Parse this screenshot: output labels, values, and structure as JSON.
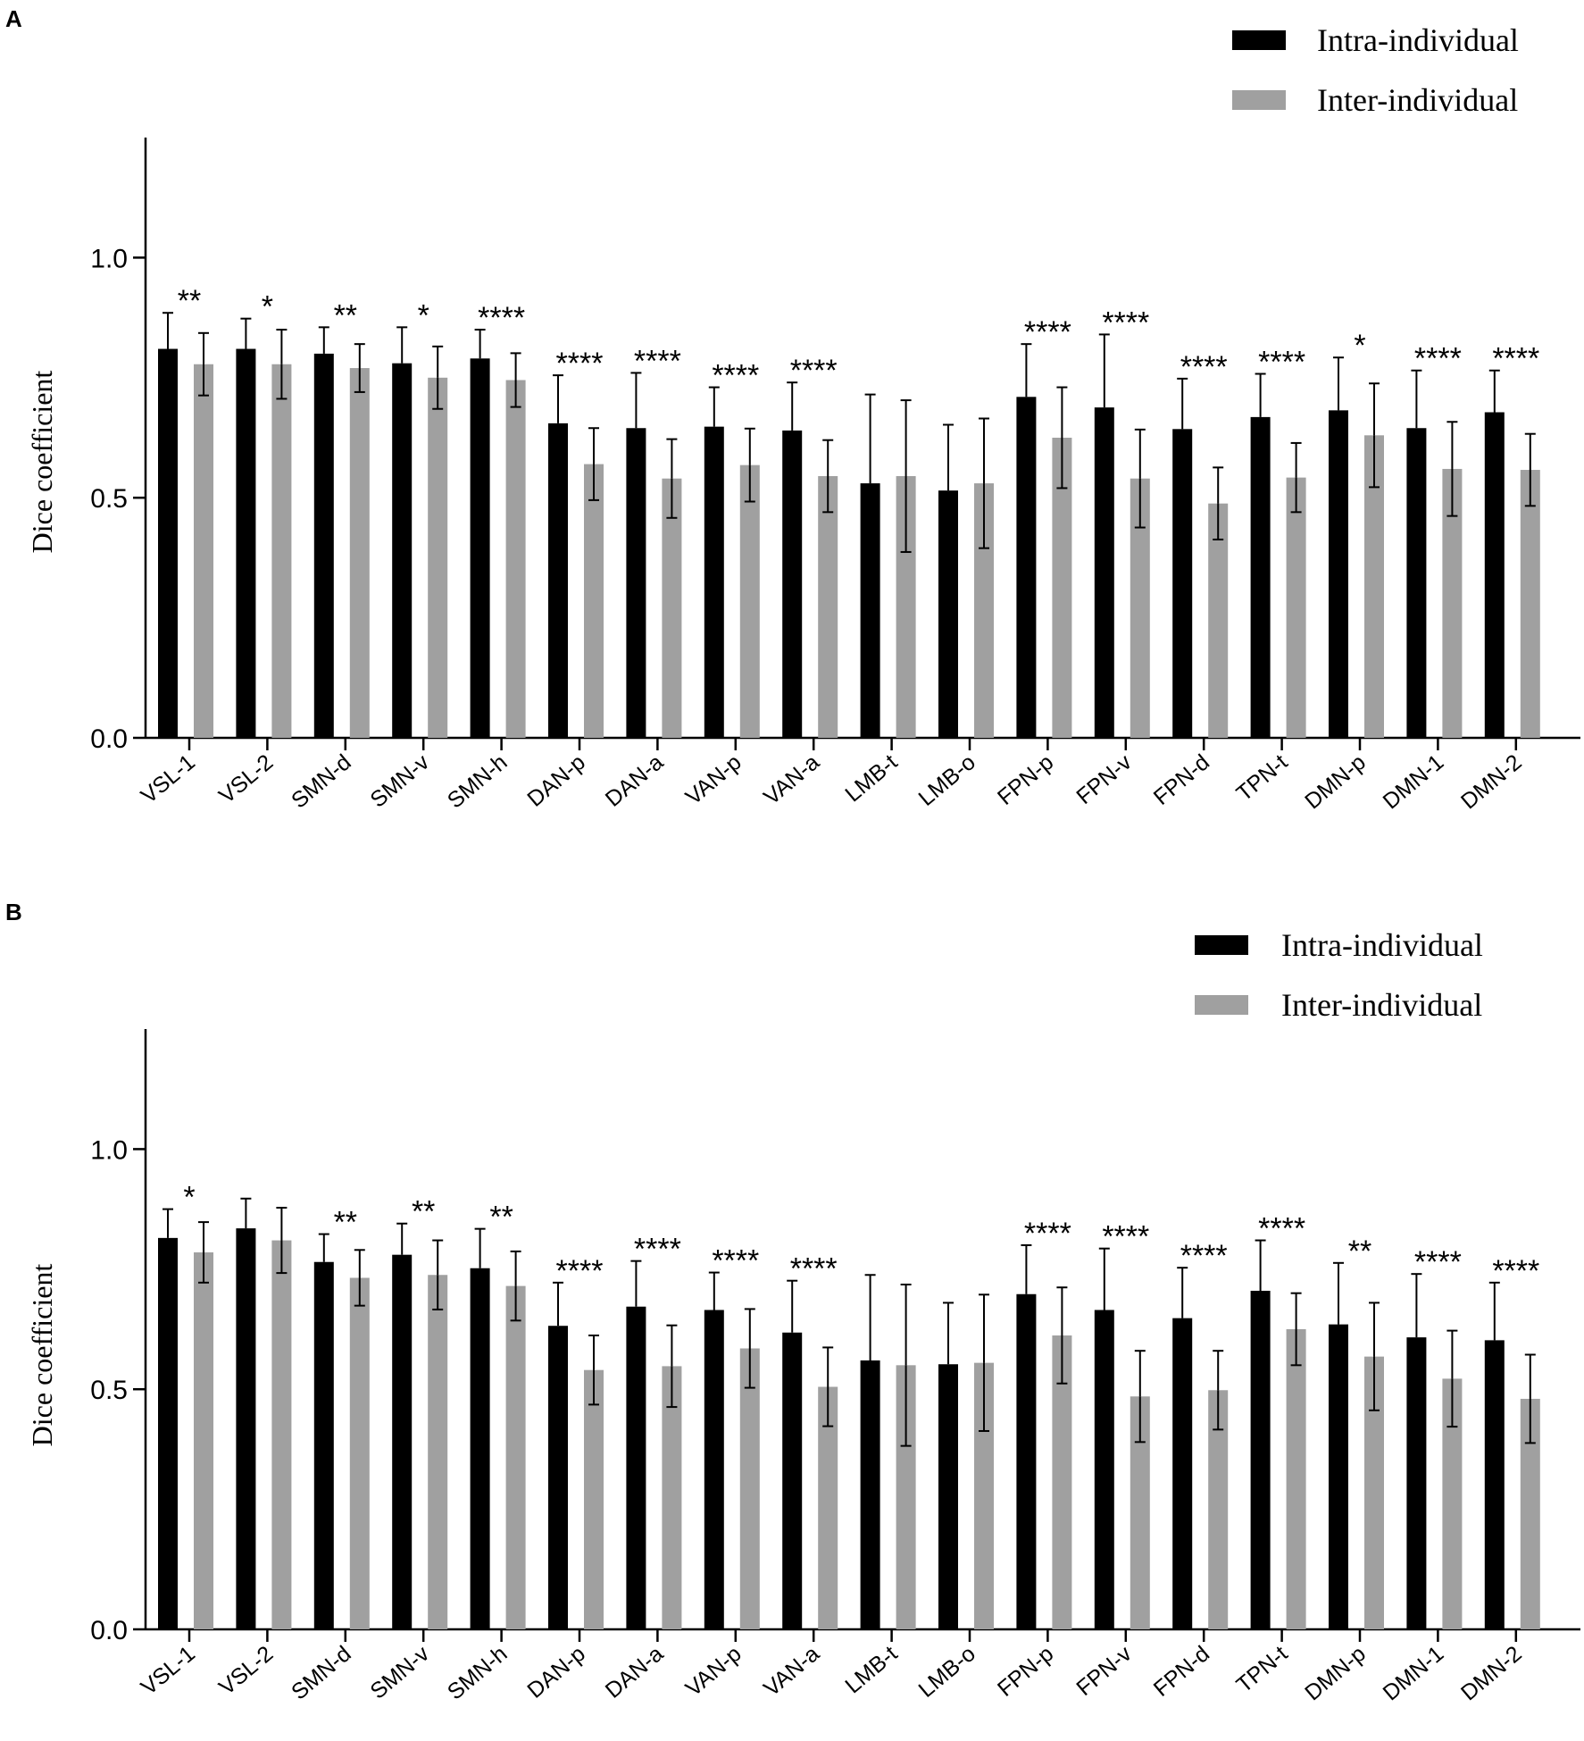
{
  "chart_data": [
    {
      "type": "bar",
      "panel": "A",
      "ylabel": "Dice coefficient",
      "ylim": [
        0,
        1.25
      ],
      "yticks": [
        "0.0",
        "0.5",
        "1.0"
      ],
      "legend_position": "top-right",
      "categories": [
        "VSL-1",
        "VSL-2",
        "SMN-d",
        "SMN-v",
        "SMN-h",
        "DAN-p",
        "DAN-a",
        "VAN-p",
        "VAN-a",
        "LMB-t",
        "LMB-o",
        "FPN-p",
        "FPN-v",
        "FPN-d",
        "TPN-t",
        "DMN-p",
        "DMN-1",
        "DMN-2"
      ],
      "series": [
        {
          "name": "Intra-individual",
          "color": "#000000",
          "values": [
            0.81,
            0.81,
            0.8,
            0.78,
            0.79,
            0.655,
            0.645,
            0.648,
            0.64,
            0.53,
            0.515,
            0.71,
            0.688,
            0.643,
            0.668,
            0.682,
            0.645,
            0.678
          ],
          "errors": [
            0.075,
            0.063,
            0.055,
            0.075,
            0.06,
            0.1,
            0.115,
            0.082,
            0.1,
            0.185,
            0.137,
            0.11,
            0.152,
            0.105,
            0.09,
            0.11,
            0.12,
            0.087
          ]
        },
        {
          "name": "Inter-individual",
          "color": "#a0a0a0",
          "values": [
            0.778,
            0.778,
            0.77,
            0.75,
            0.745,
            0.57,
            0.54,
            0.568,
            0.545,
            0.545,
            0.53,
            0.625,
            0.54,
            0.488,
            0.542,
            0.63,
            0.56,
            0.558
          ],
          "errors": [
            0.065,
            0.072,
            0.05,
            0.065,
            0.056,
            0.075,
            0.082,
            0.076,
            0.075,
            0.158,
            0.135,
            0.105,
            0.102,
            0.075,
            0.072,
            0.108,
            0.098,
            0.075
          ]
        }
      ],
      "annotations": [
        "**",
        "*",
        "**",
        "*",
        "****",
        "****",
        "****",
        "****",
        "****",
        "",
        "",
        "****",
        "****",
        "****",
        "****",
        "*",
        "****",
        "****"
      ]
    },
    {
      "type": "bar",
      "panel": "B",
      "ylabel": "Dice coefficient",
      "ylim": [
        0,
        1.25
      ],
      "yticks": [
        "0.0",
        "0.5",
        "1.0"
      ],
      "legend_position": "top-right",
      "categories": [
        "VSL-1",
        "VSL-2",
        "SMN-d",
        "SMN-v",
        "SMN-h",
        "DAN-p",
        "DAN-a",
        "VAN-p",
        "VAN-a",
        "LMB-t",
        "LMB-o",
        "FPN-p",
        "FPN-v",
        "FPN-d",
        "TPN-t",
        "DMN-p",
        "DMN-1",
        "DMN-2"
      ],
      "series": [
        {
          "name": "Intra-individual",
          "color": "#000000",
          "values": [
            0.815,
            0.835,
            0.765,
            0.78,
            0.752,
            0.632,
            0.672,
            0.665,
            0.618,
            0.56,
            0.552,
            0.698,
            0.665,
            0.648,
            0.705,
            0.635,
            0.608,
            0.602
          ],
          "errors": [
            0.06,
            0.062,
            0.058,
            0.065,
            0.082,
            0.09,
            0.095,
            0.078,
            0.108,
            0.178,
            0.128,
            0.102,
            0.128,
            0.105,
            0.105,
            0.128,
            0.132,
            0.12
          ]
        },
        {
          "name": "Inter-individual",
          "color": "#a0a0a0",
          "values": [
            0.785,
            0.81,
            0.732,
            0.738,
            0.715,
            0.54,
            0.548,
            0.585,
            0.505,
            0.55,
            0.555,
            0.612,
            0.485,
            0.498,
            0.625,
            0.568,
            0.522,
            0.48
          ],
          "errors": [
            0.063,
            0.068,
            0.058,
            0.072,
            0.072,
            0.072,
            0.085,
            0.082,
            0.082,
            0.168,
            0.142,
            0.1,
            0.095,
            0.082,
            0.075,
            0.112,
            0.1,
            0.092
          ]
        }
      ],
      "annotations": [
        "*",
        "",
        "**",
        "**",
        "**",
        "****",
        "****",
        "****",
        "****",
        "",
        "",
        "****",
        "****",
        "****",
        "****",
        "**",
        "****",
        "****"
      ]
    }
  ]
}
